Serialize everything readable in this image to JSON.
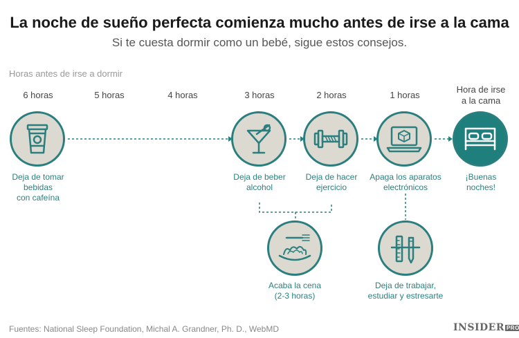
{
  "title": "La noche de sueño perfecta comienza mucho antes de irse a la cama",
  "subtitle": "Si te cuesta dormir como un bebé, sigue estos consejos.",
  "axis_title": "Horas antes de irse a dormir",
  "hours": [
    "6 horas",
    "5 horas",
    "4 horas",
    "3 horas",
    "2 horas",
    "1 horas",
    "Hora de irse\na la cama"
  ],
  "steps": [
    {
      "label": "Deja de tomar\nbebidas\ncon cafeína",
      "icon": "coffee-cup-icon"
    },
    {
      "label": "Deja de beber\nalcohol",
      "icon": "cocktail-glass-icon"
    },
    {
      "label": "Deja de hacer\nejercicio",
      "icon": "dumbbell-icon"
    },
    {
      "label": "Apaga los aparatos\nelectrónicos",
      "icon": "laptop-icon"
    },
    {
      "label": "¡Buenas\nnoches!",
      "icon": "bed-icon"
    },
    {
      "label": "Acaba la cena\n(2-3 horas)",
      "icon": "spaghetti-plate-icon"
    },
    {
      "label": "Deja de trabajar,\nestudiar y estresarte",
      "icon": "pencil-ruler-icon"
    }
  ],
  "footer": "Fuentes: National Sleep Foundation, Michal A. Grandner, Ph. D., WebMD",
  "logo": {
    "text": "INSIDER",
    "badge": "PRO"
  },
  "colors": {
    "teal": "#2a7f7e",
    "circle_fill": "#dcd9d0",
    "text_gray": "#555555"
  }
}
